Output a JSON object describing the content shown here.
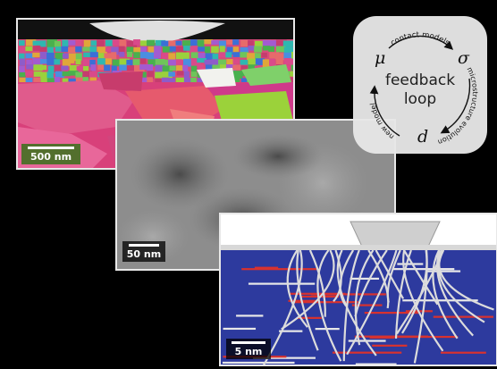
{
  "panels": {
    "ebsd": {
      "scale_label": "500 nm"
    },
    "tem": {
      "scale_label": "50 nm"
    },
    "md": {
      "scale_label": "5 nm"
    }
  },
  "feedback_loop": {
    "center_line1": "feedback",
    "center_line2": "loop",
    "symbols": {
      "mu": "μ",
      "sigma": "σ",
      "d": "d"
    },
    "arc_labels": {
      "top": "contact models",
      "right": "microstructure evolution",
      "left": "new model"
    }
  }
}
